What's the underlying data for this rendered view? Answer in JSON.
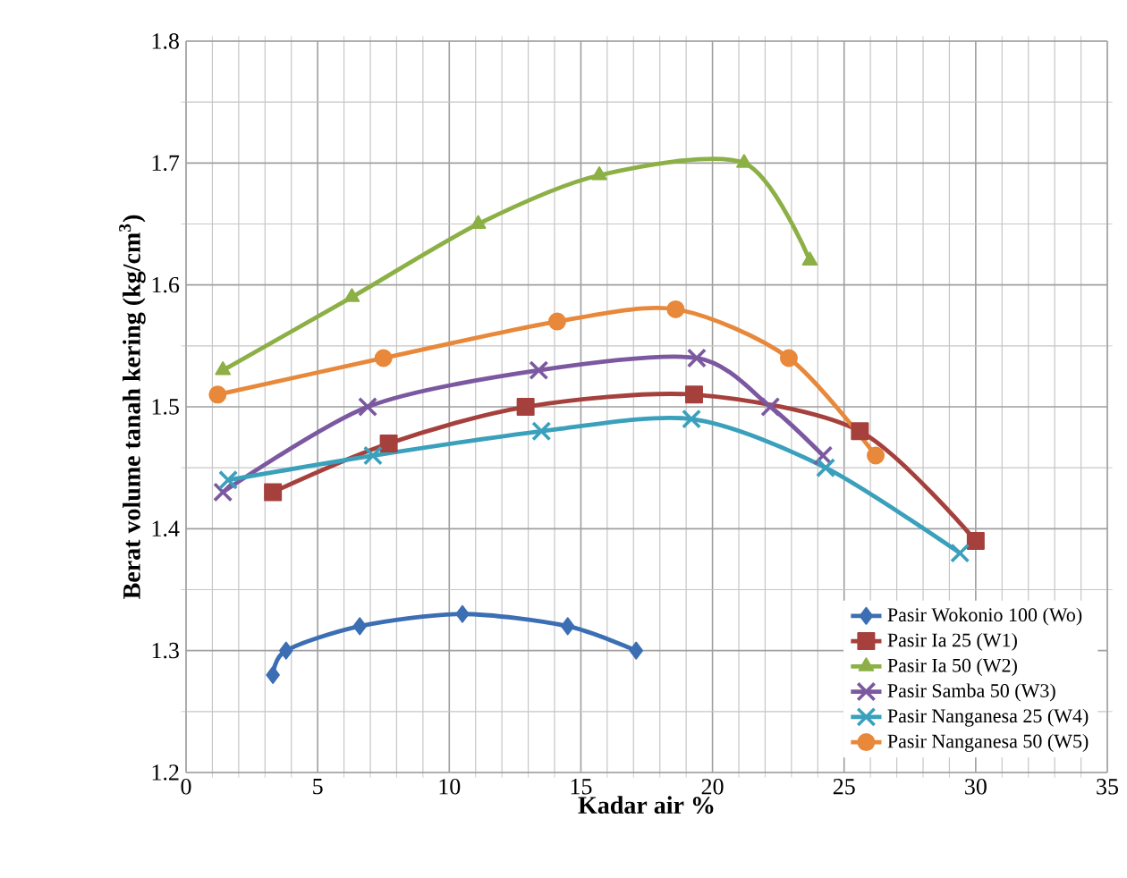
{
  "chart_data": {
    "type": "line",
    "xlabel": "Kadar air %",
    "ylabel": "Berat volume tanah kering (kg/cm$^{3}$)",
    "xlim": [
      0,
      35
    ],
    "xticks": [
      0,
      5,
      10,
      15,
      20,
      25,
      30,
      35
    ],
    "ylim": [
      1.2,
      1.8
    ],
    "yticks": [
      1.2,
      1.3,
      1.4,
      1.5,
      1.6,
      1.7,
      1.8
    ],
    "grid": true,
    "legend": "bottom right",
    "line_style": "solid",
    "series": [
      {
        "name": "Pasir Wokonio 100 (Wo)",
        "color": "#3c6eb4",
        "marker": "diamond",
        "x": [
          3.3,
          3.8,
          6.6,
          10.5,
          14.5,
          17.1
        ],
        "values": [
          1.28,
          1.3,
          1.32,
          1.33,
          1.32,
          1.3
        ]
      },
      {
        "name": "Pasir Ia 25 (W1)",
        "color": "#a5403d",
        "marker": "square",
        "x": [
          3.3,
          7.7,
          12.9,
          19.3,
          25.6,
          30.0
        ],
        "values": [
          1.43,
          1.47,
          1.5,
          1.51,
          1.48,
          1.39
        ]
      },
      {
        "name": "Pasir Ia 50 (W2)",
        "color": "#8cb045",
        "marker": "triangle",
        "x": [
          1.4,
          6.3,
          11.1,
          15.7,
          21.2,
          23.7
        ],
        "values": [
          1.53,
          1.59,
          1.65,
          1.69,
          1.7,
          1.62
        ]
      },
      {
        "name": "Pasir Samba 50 (W3)",
        "color": "#7b58a0",
        "marker": "cross",
        "x": [
          1.4,
          6.9,
          13.4,
          19.4,
          22.2,
          24.2
        ],
        "values": [
          1.43,
          1.5,
          1.53,
          1.54,
          1.5,
          1.46
        ]
      },
      {
        "name": "Pasir Nanganesa 25 (W4)",
        "color": "#3aa0bc",
        "marker": "cross",
        "x": [
          1.6,
          7.1,
          13.5,
          19.2,
          24.3,
          29.4
        ],
        "values": [
          1.44,
          1.46,
          1.48,
          1.49,
          1.45,
          1.38
        ]
      },
      {
        "name": "Pasir Nanganesa 50 (W5)",
        "color": "#e8883a",
        "marker": "circle",
        "x": [
          1.2,
          7.5,
          14.1,
          18.6,
          22.9,
          26.2
        ],
        "values": [
          1.51,
          1.54,
          1.57,
          1.58,
          1.54,
          1.46
        ]
      }
    ]
  }
}
